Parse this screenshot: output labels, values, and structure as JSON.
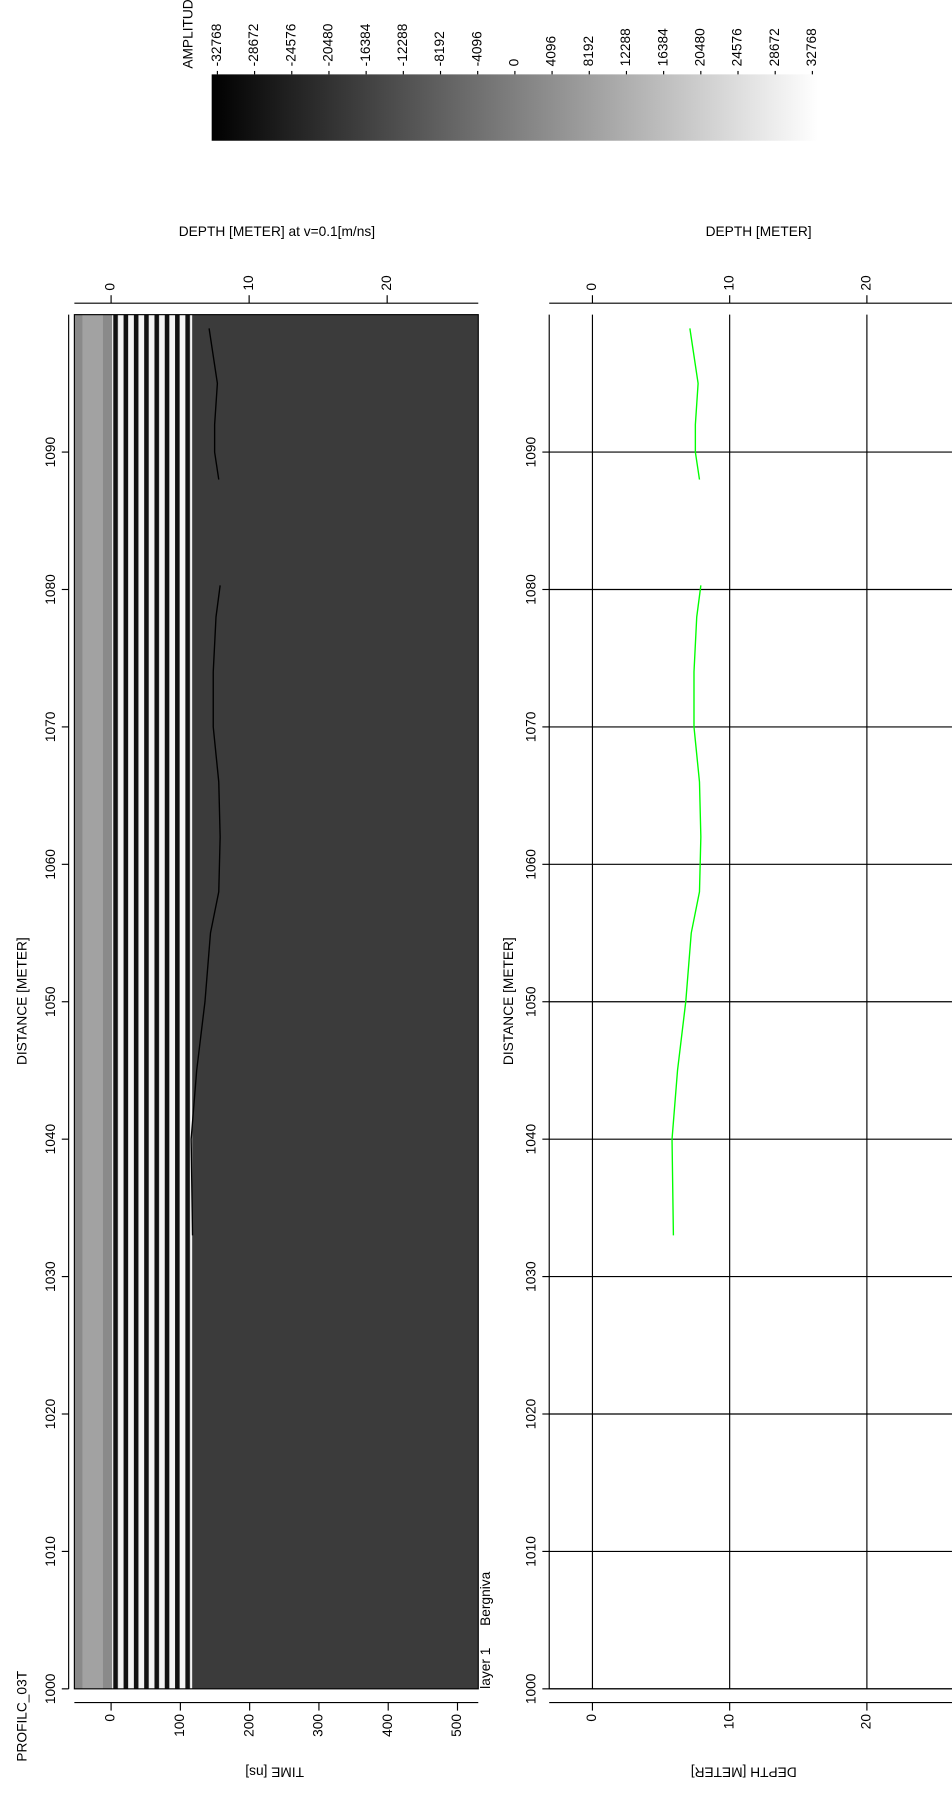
{
  "chart_data": [
    {
      "type": "heatmap",
      "title": "PROFILC_03T",
      "xlabel": "DISTANCE [METER]",
      "ylabel": "TIME [ns]",
      "y2label": "DEPTH [METER] at v=0.1[m/ns]",
      "xlim": [
        1000,
        1100
      ],
      "xticks": [
        1000,
        1010,
        1020,
        1030,
        1040,
        1050,
        1060,
        1070,
        1080,
        1090
      ],
      "ylim": [
        -53,
        530
      ],
      "yticks": [
        0,
        100,
        200,
        300,
        400,
        500
      ],
      "y2lim": [
        -2.66,
        26.6
      ],
      "y2ticks": [
        0,
        10,
        20
      ],
      "colorbar": {
        "label": "AMPLITUDE",
        "lim": [
          -32768,
          32768
        ],
        "colors": [
          "#000000",
          "#ffffff"
        ],
        "ticks": [
          -32768,
          -28672,
          -24576,
          -20480,
          -16384,
          -12288,
          -8192,
          -4096,
          0,
          4096,
          8192,
          12288,
          16384,
          20480,
          24576,
          28672,
          32768
        ]
      },
      "series": [
        {
          "name": "layer 1",
          "annotation": "Bergniva",
          "color": "#00ff00",
          "line_color": "#000000",
          "axis": "y2",
          "x": [
            1033,
            1040,
            1045,
            1050,
            1055,
            1058,
            1062,
            1066,
            1070,
            1074,
            1078,
            1080.3,
            1084,
            1088,
            1090,
            1092,
            1095,
            1099
          ],
          "values": [
            5.9,
            5.8,
            6.2,
            6.8,
            7.2,
            7.8,
            7.9,
            7.8,
            7.4,
            7.4,
            7.6,
            7.9,
            null,
            7.8,
            7.5,
            7.5,
            7.7,
            7.1
          ]
        }
      ]
    },
    {
      "type": "line",
      "title": "DEPTH [METER]",
      "xlabel": "DISTANCE [METER]",
      "ylabel": "DEPTH [METER]",
      "xlim": [
        1000,
        1100
      ],
      "xticks": [
        1000,
        1010,
        1020,
        1030,
        1040,
        1050,
        1060,
        1070,
        1080,
        1090
      ],
      "ylim": [
        -3.15,
        26.2
      ],
      "yticks": [
        0,
        10,
        20
      ],
      "grid": true,
      "series": [
        {
          "color": "#00ff00",
          "x": [
            1033,
            1040,
            1045,
            1050,
            1055,
            1058,
            1062,
            1066,
            1070,
            1074,
            1078,
            1080.3,
            1084,
            1088,
            1090,
            1092,
            1095,
            1099
          ],
          "values": [
            5.9,
            5.8,
            6.2,
            6.8,
            7.2,
            7.8,
            7.9,
            7.8,
            7.4,
            7.4,
            7.6,
            7.9,
            null,
            7.8,
            7.5,
            7.5,
            7.7,
            7.1
          ]
        }
      ]
    }
  ]
}
